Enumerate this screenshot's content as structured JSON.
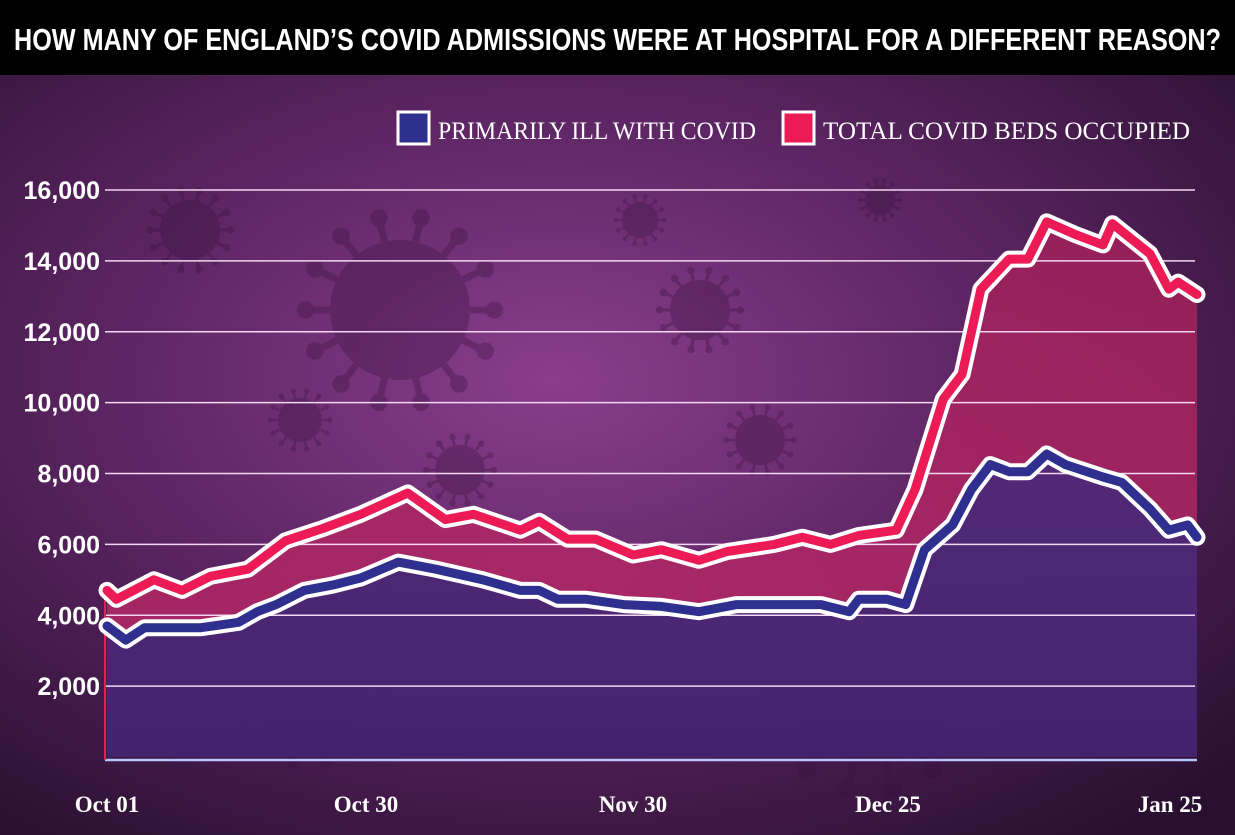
{
  "title": "HOW MANY OF ENGLAND’S COVID ADMISSIONS WERE AT HOSPITAL FOR A DIFFERENT REASON?",
  "chart_data": {
    "type": "area",
    "title": "HOW MANY OF ENGLAND’S COVID ADMISSIONS WERE AT HOSPITAL FOR A DIFFERENT REASON?",
    "xlabel": "",
    "ylabel": "",
    "ylim": [
      0,
      16000
    ],
    "yticks": [
      "2,000",
      "4,000",
      "6,000",
      "8,000",
      "10,000",
      "12,000",
      "14,000",
      "16,000"
    ],
    "ytick_values": [
      2000,
      4000,
      6000,
      8000,
      10000,
      12000,
      14000,
      16000
    ],
    "xticks": [
      "Oct 01",
      "Oct 30",
      "Nov 30",
      "Dec 25",
      "Jan 25"
    ],
    "xlim": [
      "Oct 01",
      "Jan 25"
    ],
    "grid": true,
    "legend_position": "top-right",
    "series": [
      {
        "name": "PRIMARILY ILL WITH COVID",
        "color": "#2e2f8f",
        "x": [
          "Oct 01",
          "Oct 03",
          "Oct 05",
          "Oct 08",
          "Oct 11",
          "Oct 15",
          "Oct 17",
          "Oct 19",
          "Oct 22",
          "Oct 25",
          "Oct 28",
          "Nov 01",
          "Nov 05",
          "Nov 10",
          "Nov 14",
          "Nov 16",
          "Nov 18",
          "Nov 21",
          "Nov 25",
          "Nov 29",
          "Dec 03",
          "Dec 07",
          "Dec 13",
          "Dec 16",
          "Dec 19",
          "Dec 20",
          "Dec 23",
          "Dec 25",
          "Dec 27",
          "Dec 30",
          "Jan 01",
          "Jan 03",
          "Jan 05",
          "Jan 07",
          "Jan 09",
          "Jan 11",
          "Jan 15",
          "Jan 17",
          "Jan 20",
          "Jan 22",
          "Jan 24",
          "Jan 25"
        ],
        "values": [
          3700,
          3300,
          3650,
          3650,
          3650,
          3800,
          4100,
          4300,
          4700,
          4850,
          5050,
          5500,
          5300,
          5000,
          4700,
          4700,
          4450,
          4450,
          4300,
          4250,
          4100,
          4300,
          4300,
          4300,
          4100,
          4450,
          4450,
          4300,
          5850,
          6550,
          7550,
          8250,
          8050,
          8050,
          8550,
          8250,
          7900,
          7750,
          7000,
          6400,
          6550,
          6200
        ]
      },
      {
        "name": "TOTAL COVID BEDS OCCUPIED",
        "color": "#ec1b55",
        "x": [
          "Oct 01",
          "Oct 02",
          "Oct 06",
          "Oct 09",
          "Oct 12",
          "Oct 16",
          "Oct 20",
          "Oct 24",
          "Oct 28",
          "Nov 02",
          "Nov 06",
          "Nov 09",
          "Nov 14",
          "Nov 16",
          "Nov 19",
          "Nov 22",
          "Nov 26",
          "Nov 29",
          "Dec 03",
          "Dec 06",
          "Dec 11",
          "Dec 14",
          "Dec 17",
          "Dec 20",
          "Dec 24",
          "Dec 26",
          "Dec 29",
          "Dec 31",
          "Jan 02",
          "Jan 05",
          "Jan 07",
          "Jan 09",
          "Jan 12",
          "Jan 15",
          "Jan 16",
          "Jan 20",
          "Jan 22",
          "Jan 23",
          "Jan 25"
        ],
        "values": [
          4700,
          4450,
          5000,
          4700,
          5100,
          5300,
          6100,
          6450,
          6850,
          7450,
          6700,
          6850,
          6400,
          6650,
          6150,
          6150,
          5700,
          5850,
          5550,
          5800,
          6000,
          6200,
          6000,
          6250,
          6400,
          7550,
          10100,
          10800,
          13200,
          14050,
          14050,
          15100,
          14750,
          14450,
          15050,
          14200,
          13200,
          13400,
          13050
        ]
      }
    ]
  }
}
